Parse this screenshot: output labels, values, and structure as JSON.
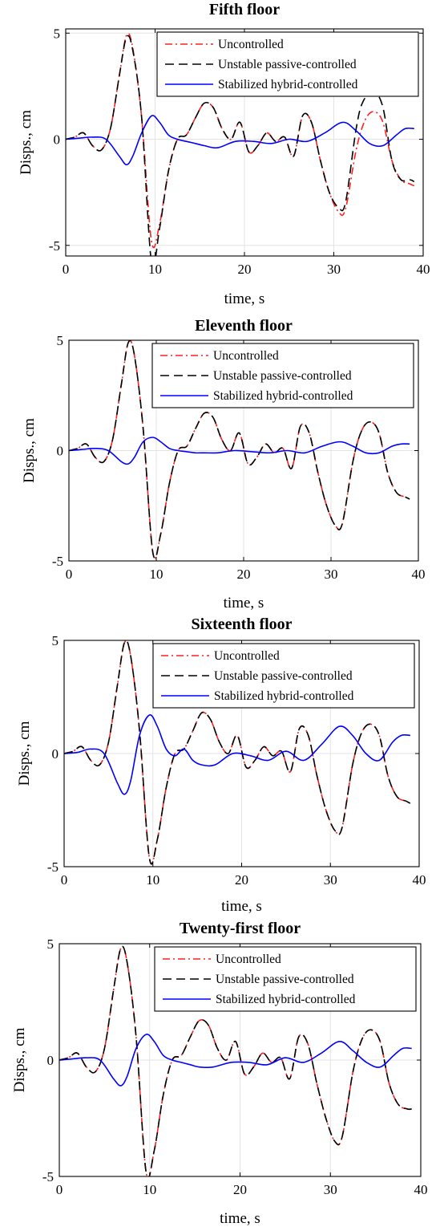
{
  "colors": {
    "uncontrolled": "#ff1f1f",
    "passive": "#000000",
    "hybrid": "#0000ff",
    "grid": "#e3e3e3"
  },
  "chart_data": [
    {
      "type": "line",
      "title": "Fifth floor",
      "xlabel": "time, s",
      "ylabel": "Disps., cm",
      "xlim": [
        0,
        40
      ],
      "ylim": [
        -5.5,
        5.2
      ],
      "xticks": [
        0,
        10,
        20,
        30,
        40
      ],
      "yticks": [
        -5,
        0,
        5
      ],
      "grid": true,
      "legend_position": "top-right",
      "series": [
        {
          "name": "Uncontrolled",
          "style": "dash-dot",
          "color": "#ff1f1f",
          "x": [
            0,
            1,
            2,
            3,
            4,
            5,
            6,
            6.8,
            7.5,
            8.5,
            9.6,
            10.5,
            11.5,
            12.5,
            13.5,
            14.5,
            15.5,
            16.5,
            17.5,
            18.5,
            19.5,
            20.5,
            21.5,
            22.5,
            23.5,
            24.5,
            25.5,
            26.5,
            27.5,
            28.5,
            29.5,
            30.5,
            31.3,
            32.5,
            33.5,
            34.5,
            35.5,
            36.5,
            37.5,
            38.5,
            39
          ],
          "y": [
            0,
            0.1,
            0.3,
            -0.3,
            -0.5,
            0.5,
            3,
            4.9,
            4.3,
            1,
            -4.8,
            -4,
            -1.5,
            0,
            0.2,
            1,
            1.7,
            1.5,
            0.5,
            0,
            0.8,
            -0.6,
            -0.3,
            0.3,
            -0.1,
            0.1,
            -0.8,
            1.1,
            0.8,
            -1,
            -2.5,
            -3.4,
            -3.3,
            -0.5,
            0.9,
            1.3,
            0.8,
            -1,
            -1.9,
            -2.1,
            -2.2
          ]
        },
        {
          "name": "Unstable passive-controlled",
          "style": "dashed",
          "color": "#000000",
          "x": [
            0,
            1,
            2,
            3,
            4,
            5,
            6,
            6.8,
            7.5,
            8.5,
            9.6,
            10.5,
            11.5,
            12.5,
            13.5,
            14.5,
            15.5,
            16.5,
            17.5,
            18.5,
            19.5,
            20.5,
            21.5,
            22.5,
            23.5,
            24.5,
            25.5,
            26.5,
            27.5,
            28.5,
            29.5,
            30.5,
            31.3,
            32.5,
            33.3,
            34.5,
            35.5,
            36.5,
            37.5,
            38.5,
            39
          ],
          "y": [
            0,
            0.1,
            0.3,
            -0.3,
            -0.5,
            0.5,
            3,
            4.8,
            4.2,
            1,
            -5.8,
            -4.2,
            -1.5,
            0,
            0.2,
            1,
            1.7,
            1.5,
            0.5,
            0,
            0.8,
            -0.6,
            -0.3,
            0.3,
            -0.1,
            0.1,
            -0.8,
            1.1,
            0.8,
            -1,
            -2.5,
            -3.2,
            -3,
            0.5,
            1.8,
            2.2,
            1.5,
            -1,
            -1.9,
            -1.9,
            -2
          ]
        },
        {
          "name": "Stabilized hybrid-controlled",
          "style": "solid",
          "color": "#0000ff",
          "x": [
            0,
            1.5,
            3,
            4.5,
            6,
            6.8,
            7.5,
            8.5,
            9.6,
            10.5,
            11.5,
            12.5,
            13.5,
            14.5,
            15.5,
            17,
            19,
            21,
            23,
            25,
            27,
            29,
            31,
            32.5,
            34,
            35.5,
            37,
            38,
            39
          ],
          "y": [
            0,
            0.05,
            0.1,
            0,
            -0.8,
            -1.2,
            -0.8,
            0.3,
            1.1,
            0.8,
            0.2,
            0,
            -0.1,
            -0.2,
            -0.3,
            -0.4,
            -0.1,
            -0.1,
            -0.2,
            0,
            -0.1,
            0.3,
            0.8,
            0.4,
            -0.2,
            -0.3,
            0.2,
            0.5,
            0.5
          ]
        }
      ]
    },
    {
      "type": "line",
      "title": "Eleventh floor",
      "xlabel": "time, s",
      "ylabel": "Disps., cm",
      "xlim": [
        0,
        40
      ],
      "ylim": [
        -5,
        5
      ],
      "xticks": [
        0,
        10,
        20,
        30,
        40
      ],
      "yticks": [
        -5,
        0,
        5
      ],
      "grid": true,
      "legend_position": "top-right",
      "series": [
        {
          "name": "Uncontrolled",
          "style": "dash-dot",
          "color": "#ff1f1f",
          "x": [
            0,
            1,
            2,
            3,
            4,
            5,
            6,
            6.8,
            7.5,
            8.5,
            9.6,
            10.5,
            11.5,
            12.5,
            13.5,
            14.5,
            15.5,
            16.5,
            17.5,
            18.5,
            19.5,
            20.5,
            21.5,
            22.5,
            23.5,
            24.5,
            25.5,
            26.5,
            27.5,
            28.5,
            29.5,
            30.5,
            31.3,
            32.5,
            33.5,
            34.5,
            35.5,
            36.5,
            37.5,
            38.5,
            39
          ],
          "y": [
            0,
            0.1,
            0.3,
            -0.3,
            -0.5,
            0.5,
            3,
            4.9,
            4.3,
            1,
            -4.6,
            -3.8,
            -1.5,
            0,
            0.2,
            1,
            1.7,
            1.5,
            0.5,
            0,
            0.8,
            -0.6,
            -0.3,
            0.3,
            -0.1,
            0.1,
            -0.8,
            1.1,
            0.8,
            -1,
            -2.5,
            -3.4,
            -3.3,
            -0.5,
            0.9,
            1.3,
            0.8,
            -1,
            -1.9,
            -2.1,
            -2.2
          ]
        },
        {
          "name": "Unstable passive-controlled",
          "style": "dashed",
          "color": "#000000",
          "x": [
            0,
            1,
            2,
            3,
            4,
            5,
            6,
            6.8,
            7.5,
            8.5,
            9.6,
            10.5,
            11.5,
            12.5,
            13.5,
            14.5,
            15.5,
            16.5,
            17.5,
            18.5,
            19.5,
            20.5,
            21.5,
            22.5,
            23.5,
            24.5,
            25.5,
            26.5,
            27.5,
            28.5,
            29.5,
            30.5,
            31.3,
            32.5,
            33.5,
            34.5,
            35.5,
            36.5,
            37.5,
            38.5,
            39
          ],
          "y": [
            0,
            0.1,
            0.3,
            -0.3,
            -0.5,
            0.5,
            3,
            4.9,
            4.3,
            1,
            -4.6,
            -3.8,
            -1.5,
            0,
            0.2,
            1,
            1.7,
            1.5,
            0.5,
            0,
            0.8,
            -0.6,
            -0.3,
            0.3,
            -0.1,
            0.1,
            -0.8,
            1.1,
            0.8,
            -1,
            -2.5,
            -3.4,
            -3.3,
            -0.5,
            0.9,
            1.3,
            0.8,
            -1,
            -1.9,
            -2.1,
            -2.2
          ]
        },
        {
          "name": "Stabilized hybrid-controlled",
          "style": "solid",
          "color": "#0000ff",
          "x": [
            0,
            1.5,
            3,
            4.5,
            6,
            6.8,
            7.5,
            8.5,
            9.6,
            10.5,
            11.5,
            12.5,
            13.5,
            14.5,
            15.5,
            17,
            19,
            21,
            23,
            25,
            27,
            29,
            31,
            32.5,
            34,
            35.5,
            37,
            38,
            39
          ],
          "y": [
            0,
            0.05,
            0.1,
            0,
            -0.5,
            -0.6,
            -0.3,
            0.4,
            0.6,
            0.4,
            0.1,
            0,
            -0.05,
            -0.1,
            -0.1,
            -0.1,
            0,
            -0.05,
            -0.1,
            0,
            -0.1,
            0.2,
            0.4,
            0.2,
            -0.1,
            -0.1,
            0.2,
            0.3,
            0.3
          ]
        }
      ]
    },
    {
      "type": "line",
      "title": "Sixteenth floor",
      "xlabel": "time, s",
      "ylabel": "Disps., cm",
      "xlim": [
        0,
        40
      ],
      "ylim": [
        -5,
        5
      ],
      "xticks": [
        0,
        10,
        20,
        30,
        40
      ],
      "yticks": [
        -5,
        0,
        5
      ],
      "grid": true,
      "legend_position": "top-right",
      "series": [
        {
          "name": "Uncontrolled",
          "style": "dash-dot",
          "color": "#ff1f1f",
          "x": [
            0,
            1,
            2,
            3,
            4,
            5,
            6,
            6.8,
            7.5,
            8.5,
            9.6,
            10.5,
            11.5,
            12.5,
            13.5,
            14.5,
            15.5,
            16.5,
            17.5,
            18.5,
            19.5,
            20.5,
            21.5,
            22.5,
            23.5,
            24.5,
            25.5,
            26.5,
            27.5,
            28.5,
            29.5,
            30.5,
            31.3,
            32.5,
            33.5,
            34.5,
            35.5,
            36.5,
            37.5,
            38.5,
            39
          ],
          "y": [
            0,
            0.1,
            0.3,
            -0.3,
            -0.5,
            0.5,
            3,
            4.9,
            4.3,
            1,
            -4.6,
            -3.8,
            -1.5,
            0,
            0.2,
            1,
            1.8,
            1.5,
            0.5,
            0,
            0.8,
            -0.6,
            -0.3,
            0.3,
            -0.1,
            0.1,
            -0.8,
            1.1,
            0.8,
            -1,
            -2.5,
            -3.4,
            -3.3,
            -0.5,
            0.9,
            1.3,
            0.8,
            -1,
            -1.9,
            -2.1,
            -2.2
          ]
        },
        {
          "name": "Unstable passive-controlled",
          "style": "dashed",
          "color": "#000000",
          "x": [
            0,
            1,
            2,
            3,
            4,
            5,
            6,
            6.8,
            7.5,
            8.5,
            9.6,
            10.5,
            11.5,
            12.5,
            13.5,
            14.5,
            15.5,
            16.5,
            17.5,
            18.5,
            19.5,
            20.5,
            21.5,
            22.5,
            23.5,
            24.5,
            25.5,
            26.5,
            27.5,
            28.5,
            29.5,
            30.5,
            31.3,
            32.5,
            33.5,
            34.5,
            35.5,
            36.5,
            37.5,
            38.5,
            39
          ],
          "y": [
            0,
            0.1,
            0.3,
            -0.3,
            -0.5,
            0.5,
            3,
            4.9,
            4.3,
            1,
            -4.6,
            -3.8,
            -1.5,
            0,
            0.2,
            1,
            1.8,
            1.5,
            0.5,
            0,
            0.8,
            -0.6,
            -0.3,
            0.3,
            -0.1,
            0.1,
            -0.8,
            1.1,
            0.8,
            -1,
            -2.5,
            -3.4,
            -3.3,
            -0.5,
            0.9,
            1.3,
            0.8,
            -1,
            -1.9,
            -2.1,
            -2.2
          ]
        },
        {
          "name": "Stabilized hybrid-controlled",
          "style": "solid",
          "color": "#0000ff",
          "x": [
            0,
            1.5,
            3,
            4.5,
            6,
            6.8,
            7.5,
            8.5,
            9.6,
            10.5,
            11.5,
            12.5,
            13.5,
            14.5,
            15.5,
            17,
            19,
            21,
            23,
            25,
            27,
            29,
            31,
            32.5,
            34,
            35.5,
            37,
            38,
            39
          ],
          "y": [
            0,
            0.05,
            0.2,
            0,
            -1.3,
            -1.8,
            -1.2,
            0.8,
            1.7,
            1.2,
            0.2,
            -0.1,
            0.2,
            -0.3,
            -0.5,
            -0.5,
            0,
            -0.1,
            -0.3,
            0.1,
            -0.3,
            0.4,
            1.2,
            0.8,
            0,
            -0.3,
            0.5,
            0.8,
            0.8
          ]
        }
      ]
    },
    {
      "type": "line",
      "title": "Twenty-first floor",
      "xlabel": "time, s",
      "ylabel": "Disps., cm",
      "xlim": [
        0,
        40
      ],
      "ylim": [
        -5,
        5
      ],
      "xticks": [
        0,
        10,
        20,
        30,
        40
      ],
      "yticks": [
        -5,
        0,
        5
      ],
      "grid": true,
      "legend_position": "top-right",
      "series": [
        {
          "name": "Uncontrolled",
          "style": "dash-dot",
          "color": "#ff1f1f",
          "x": [
            0,
            1,
            2,
            3,
            4,
            5,
            6,
            6.8,
            7.5,
            8.5,
            9.6,
            10.5,
            11.5,
            12.5,
            13.5,
            14.5,
            15.5,
            16.5,
            17.5,
            18.5,
            19.5,
            20.5,
            21.5,
            22.5,
            23.5,
            24.5,
            25.5,
            26.5,
            27.5,
            28.5,
            29.5,
            30.5,
            31.3,
            32.5,
            33.5,
            34.5,
            35.5,
            36.5,
            37.5,
            38.5,
            39
          ],
          "y": [
            0,
            0.1,
            0.3,
            -0.3,
            -0.5,
            0.5,
            3,
            4.8,
            4.2,
            1,
            -4.8,
            -3.9,
            -1.5,
            0,
            0.2,
            1,
            1.7,
            1.5,
            0.5,
            0,
            0.8,
            -0.6,
            -0.3,
            0.3,
            -0.1,
            0.1,
            -0.8,
            1,
            0.7,
            -1,
            -2.5,
            -3.5,
            -3.3,
            -0.5,
            0.9,
            1.3,
            0.8,
            -1,
            -1.9,
            -2.1,
            -2.1
          ]
        },
        {
          "name": "Unstable passive-controlled",
          "style": "dashed",
          "color": "#000000",
          "x": [
            0,
            1,
            2,
            3,
            4,
            5,
            6,
            6.8,
            7.5,
            8.5,
            9.6,
            10.5,
            11.5,
            12.5,
            13.5,
            14.5,
            15.5,
            16.5,
            17.5,
            18.5,
            19.5,
            20.5,
            21.5,
            22.5,
            23.5,
            24.5,
            25.5,
            26.5,
            27.5,
            28.5,
            29.5,
            30.5,
            31.3,
            32.5,
            33.5,
            34.5,
            35.5,
            36.5,
            37.5,
            38.5,
            39
          ],
          "y": [
            0,
            0.1,
            0.3,
            -0.3,
            -0.5,
            0.5,
            3,
            4.8,
            4.2,
            1,
            -4.8,
            -3.9,
            -1.5,
            0,
            0.2,
            1,
            1.7,
            1.5,
            0.5,
            0,
            0.8,
            -0.6,
            -0.3,
            0.3,
            -0.1,
            0.1,
            -0.8,
            1,
            0.7,
            -1,
            -2.5,
            -3.5,
            -3.3,
            -0.5,
            0.9,
            1.3,
            0.8,
            -1,
            -1.9,
            -2.1,
            -2.1
          ]
        },
        {
          "name": "Stabilized hybrid-controlled",
          "style": "solid",
          "color": "#0000ff",
          "x": [
            0,
            1.5,
            3,
            4.5,
            6,
            6.8,
            7.5,
            8.5,
            9.6,
            10.5,
            11.5,
            12.5,
            13.5,
            14.5,
            15.5,
            17,
            19,
            21,
            23,
            25,
            27,
            29,
            31,
            32.5,
            34,
            35.5,
            37,
            38,
            39
          ],
          "y": [
            0,
            0.05,
            0.1,
            0,
            -0.8,
            -1.1,
            -0.7,
            0.5,
            1.1,
            0.8,
            0.2,
            0,
            -0.1,
            -0.2,
            -0.3,
            -0.3,
            -0.1,
            -0.1,
            -0.2,
            0.1,
            -0.1,
            0.3,
            0.8,
            0.4,
            -0.1,
            -0.3,
            0.2,
            0.5,
            0.5
          ]
        }
      ]
    }
  ]
}
